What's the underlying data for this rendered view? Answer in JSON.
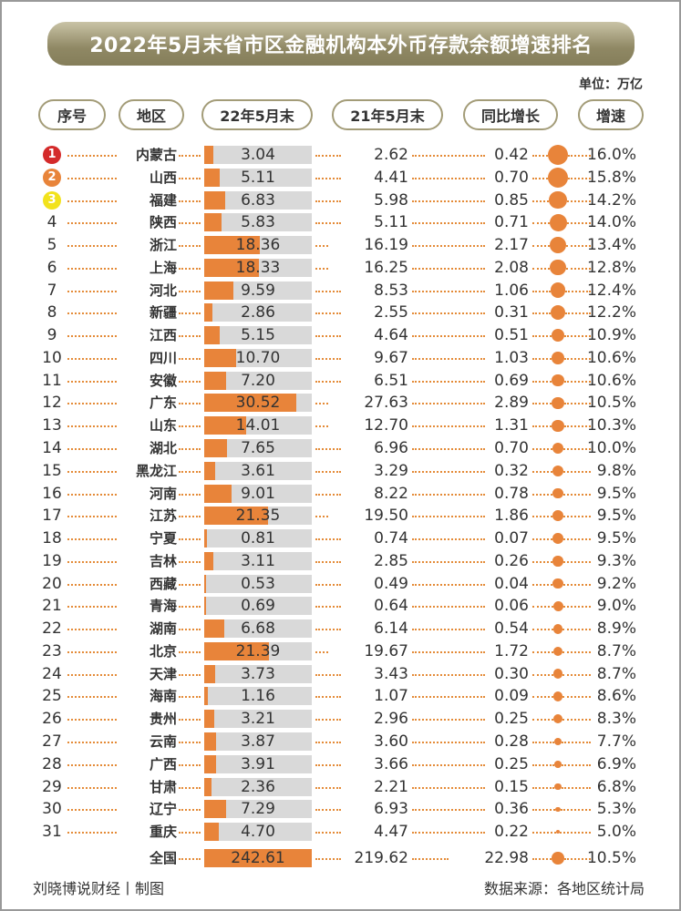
{
  "title": "2022年5月末省市区金融机构本外币存款余额增速排名",
  "unit": "单位：万亿",
  "headers": {
    "rank": "序号",
    "region": "地区",
    "may22": "22年5月末",
    "may21": "21年5月末",
    "yoy": "同比增长",
    "growth": "增速"
  },
  "colors": {
    "accent": "#e8843a",
    "gold": "#8f8864",
    "rank1": "#d42a2a",
    "rank2": "#e8843a",
    "rank3": "#f2e21c"
  },
  "rows": [
    {
      "rank": "1",
      "region": "内蒙古",
      "may22": "3.04",
      "may21": "2.62",
      "yoy": "0.42",
      "growth": "16.0%"
    },
    {
      "rank": "2",
      "region": "山西",
      "may22": "5.11",
      "may21": "4.41",
      "yoy": "0.70",
      "growth": "15.8%"
    },
    {
      "rank": "3",
      "region": "福建",
      "may22": "6.83",
      "may21": "5.98",
      "yoy": "0.85",
      "growth": "14.2%"
    },
    {
      "rank": "4",
      "region": "陕西",
      "may22": "5.83",
      "may21": "5.11",
      "yoy": "0.71",
      "growth": "14.0%"
    },
    {
      "rank": "5",
      "region": "浙江",
      "may22": "18.36",
      "may21": "16.19",
      "yoy": "2.17",
      "growth": "13.4%"
    },
    {
      "rank": "6",
      "region": "上海",
      "may22": "18.33",
      "may21": "16.25",
      "yoy": "2.08",
      "growth": "12.8%"
    },
    {
      "rank": "7",
      "region": "河北",
      "may22": "9.59",
      "may21": "8.53",
      "yoy": "1.06",
      "growth": "12.4%"
    },
    {
      "rank": "8",
      "region": "新疆",
      "may22": "2.86",
      "may21": "2.55",
      "yoy": "0.31",
      "growth": "12.2%"
    },
    {
      "rank": "9",
      "region": "江西",
      "may22": "5.15",
      "may21": "4.64",
      "yoy": "0.51",
      "growth": "10.9%"
    },
    {
      "rank": "10",
      "region": "四川",
      "may22": "10.70",
      "may21": "9.67",
      "yoy": "1.03",
      "growth": "10.6%"
    },
    {
      "rank": "11",
      "region": "安徽",
      "may22": "7.20",
      "may21": "6.51",
      "yoy": "0.69",
      "growth": "10.6%"
    },
    {
      "rank": "12",
      "region": "广东",
      "may22": "30.52",
      "may21": "27.63",
      "yoy": "2.89",
      "growth": "10.5%"
    },
    {
      "rank": "13",
      "region": "山东",
      "may22": "14.01",
      "may21": "12.70",
      "yoy": "1.31",
      "growth": "10.3%"
    },
    {
      "rank": "14",
      "region": "湖北",
      "may22": "7.65",
      "may21": "6.96",
      "yoy": "0.70",
      "growth": "10.0%"
    },
    {
      "rank": "15",
      "region": "黑龙江",
      "may22": "3.61",
      "may21": "3.29",
      "yoy": "0.32",
      "growth": "9.8%"
    },
    {
      "rank": "16",
      "region": "河南",
      "may22": "9.01",
      "may21": "8.22",
      "yoy": "0.78",
      "growth": "9.5%"
    },
    {
      "rank": "17",
      "region": "江苏",
      "may22": "21.35",
      "may21": "19.50",
      "yoy": "1.86",
      "growth": "9.5%"
    },
    {
      "rank": "18",
      "region": "宁夏",
      "may22": "0.81",
      "may21": "0.74",
      "yoy": "0.07",
      "growth": "9.5%"
    },
    {
      "rank": "19",
      "region": "吉林",
      "may22": "3.11",
      "may21": "2.85",
      "yoy": "0.26",
      "growth": "9.3%"
    },
    {
      "rank": "20",
      "region": "西藏",
      "may22": "0.53",
      "may21": "0.49",
      "yoy": "0.04",
      "growth": "9.2%"
    },
    {
      "rank": "21",
      "region": "青海",
      "may22": "0.69",
      "may21": "0.64",
      "yoy": "0.06",
      "growth": "9.0%"
    },
    {
      "rank": "22",
      "region": "湖南",
      "may22": "6.68",
      "may21": "6.14",
      "yoy": "0.54",
      "growth": "8.9%"
    },
    {
      "rank": "23",
      "region": "北京",
      "may22": "21.39",
      "may21": "19.67",
      "yoy": "1.72",
      "growth": "8.7%"
    },
    {
      "rank": "24",
      "region": "天津",
      "may22": "3.73",
      "may21": "3.43",
      "yoy": "0.30",
      "growth": "8.7%"
    },
    {
      "rank": "25",
      "region": "海南",
      "may22": "1.16",
      "may21": "1.07",
      "yoy": "0.09",
      "growth": "8.6%"
    },
    {
      "rank": "26",
      "region": "贵州",
      "may22": "3.21",
      "may21": "2.96",
      "yoy": "0.25",
      "growth": "8.3%"
    },
    {
      "rank": "27",
      "region": "云南",
      "may22": "3.87",
      "may21": "3.60",
      "yoy": "0.28",
      "growth": "7.7%"
    },
    {
      "rank": "28",
      "region": "广西",
      "may22": "3.91",
      "may21": "3.66",
      "yoy": "0.25",
      "growth": "6.9%"
    },
    {
      "rank": "29",
      "region": "甘肃",
      "may22": "2.36",
      "may21": "2.21",
      "yoy": "0.15",
      "growth": "6.8%"
    },
    {
      "rank": "30",
      "region": "辽宁",
      "may22": "7.29",
      "may21": "6.93",
      "yoy": "0.36",
      "growth": "5.3%"
    },
    {
      "rank": "31",
      "region": "重庆",
      "may22": "4.70",
      "may21": "4.47",
      "yoy": "0.22",
      "growth": "5.0%"
    },
    {
      "rank": "",
      "region": "全国",
      "may22": "242.61",
      "may21": "219.62",
      "yoy": "22.98",
      "growth": "10.5%"
    }
  ],
  "footer": {
    "credit": "刘晓博说财经丨制图",
    "source": "数据来源：各地区统计局"
  }
}
